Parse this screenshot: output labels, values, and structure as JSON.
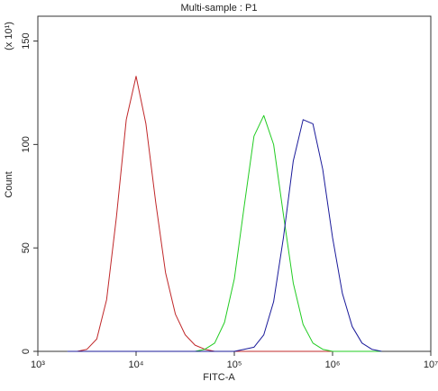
{
  "chart_data": {
    "type": "line",
    "title": "Multi-sample : P1",
    "x_label": "FITC-A",
    "y_label": "Count",
    "y_multiplier": "(x 10¹)",
    "xscale": "log",
    "xlim": [
      1000,
      10000000
    ],
    "xticks": [
      {
        "value": 1000,
        "label": "10³"
      },
      {
        "value": 10000,
        "label": "10⁴"
      },
      {
        "value": 100000,
        "label": "10⁵"
      },
      {
        "value": 1000000,
        "label": "10⁶"
      },
      {
        "value": 10000000,
        "label": "10⁷"
      }
    ],
    "ylim": [
      0,
      162
    ],
    "yticks": [
      0,
      50,
      100,
      150
    ],
    "x": [
      1995,
      2512,
      3162,
      3981,
      5012,
      6310,
      7943,
      10000,
      12589,
      15849,
      19953,
      25119,
      31623,
      39811,
      50119,
      63096,
      79433,
      100000,
      125893,
      158489,
      199526,
      251189,
      316228,
      398107,
      501187,
      630957,
      794328,
      1000000,
      1258925,
      1584893,
      1995262,
      2511886,
      3162278
    ],
    "series": [
      {
        "color": "#c0282a",
        "values": [
          0,
          0,
          1,
          6,
          25,
          65,
          112,
          133,
          110,
          72,
          38,
          18,
          8,
          3,
          1,
          0,
          0,
          0,
          0,
          0,
          0,
          0,
          0,
          0,
          0,
          0,
          0,
          0,
          0,
          0,
          0,
          0,
          0
        ]
      },
      {
        "color": "#22cc22",
        "values": [
          0,
          0,
          0,
          0,
          0,
          0,
          0,
          0,
          0,
          0,
          0,
          0,
          0,
          0,
          1,
          4,
          14,
          35,
          70,
          104,
          114,
          100,
          66,
          33,
          13,
          4,
          1,
          0,
          0,
          0,
          0,
          0,
          0
        ]
      },
      {
        "color": "#1a1a9a",
        "values": [
          0,
          0,
          0,
          0,
          0,
          0,
          0,
          0,
          0,
          0,
          0,
          0,
          0,
          0,
          0,
          0,
          0,
          0,
          1,
          2,
          8,
          24,
          55,
          92,
          112,
          110,
          88,
          55,
          28,
          12,
          4,
          1,
          0
        ]
      }
    ]
  }
}
